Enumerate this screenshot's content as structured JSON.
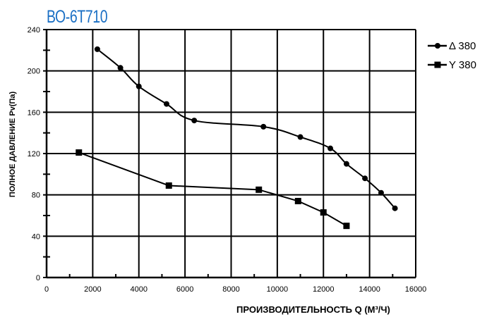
{
  "chart_data": {
    "type": "line",
    "title": "ВО-6Т710",
    "xlabel": "ПРОИЗВОДИТЕЛЬНОСТЬ  Q  (М³/Ч)",
    "ylabel": "ПОЛНОЕ ДАВЛЕНИЕ  Pv(Па)",
    "xlim": [
      0,
      16000
    ],
    "ylim": [
      0,
      240
    ],
    "xticks": [
      0,
      2000,
      4000,
      6000,
      8000,
      10000,
      12000,
      14000,
      16000
    ],
    "yticks": [
      0,
      40,
      80,
      120,
      160,
      200,
      240
    ],
    "grid": true,
    "legend_position": "top-right",
    "series": [
      {
        "name": "Δ 380",
        "marker": "circle",
        "color": "#000000",
        "x": [
          2200,
          3200,
          4000,
          5200,
          6400,
          9400,
          11000,
          12300,
          13000,
          13800,
          14500,
          15100
        ],
        "y": [
          221,
          203,
          185,
          168,
          152,
          146,
          136,
          125,
          110,
          96,
          82,
          67
        ]
      },
      {
        "name": "Y 380",
        "marker": "square",
        "color": "#000000",
        "x": [
          1400,
          5300,
          9200,
          10900,
          12000,
          13000
        ],
        "y": [
          121,
          89,
          85,
          74,
          63,
          50
        ]
      }
    ]
  }
}
